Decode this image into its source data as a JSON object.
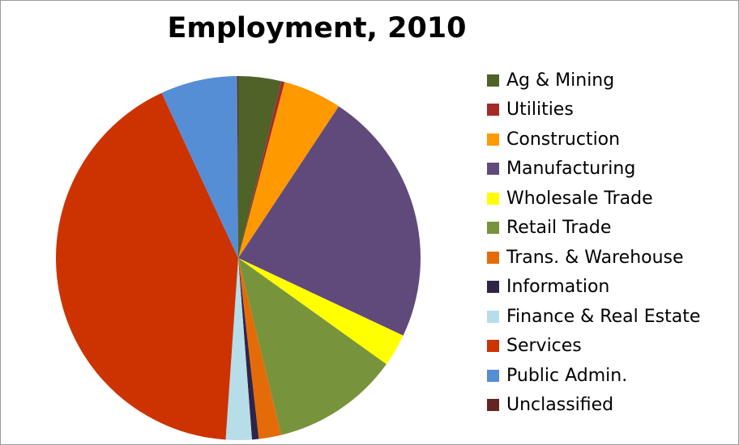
{
  "chart_data": {
    "type": "pie",
    "title": "Employment, 2010",
    "legend_position": "right",
    "start_angle_deg": 0,
    "direction": "clockwise",
    "slices": [
      {
        "label": "Ag & Mining",
        "value": 3.8,
        "color": "#4f6228"
      },
      {
        "label": "Utilities",
        "value": 0.3,
        "color": "#a52a2a"
      },
      {
        "label": "Construction",
        "value": 5.2,
        "color": "#ff9900"
      },
      {
        "label": "Manufacturing",
        "value": 22.7,
        "color": "#604a7b"
      },
      {
        "label": "Wholesale Trade",
        "value": 2.9,
        "color": "#ffff00"
      },
      {
        "label": "Retail Trade",
        "value": 11.3,
        "color": "#77933c"
      },
      {
        "label": "Trans. & Warehouse",
        "value": 2.0,
        "color": "#e36c09"
      },
      {
        "label": "Information",
        "value": 0.6,
        "color": "#2f2448"
      },
      {
        "label": "Finance & Real Estate",
        "value": 2.3,
        "color": "#b7dde8"
      },
      {
        "label": "Services",
        "value": 42.0,
        "color": "#cc3300"
      },
      {
        "label": "Public Admin.",
        "value": 6.8,
        "color": "#558ed5"
      },
      {
        "label": "Unclassified",
        "value": 0.1,
        "color": "#632523"
      }
    ]
  }
}
